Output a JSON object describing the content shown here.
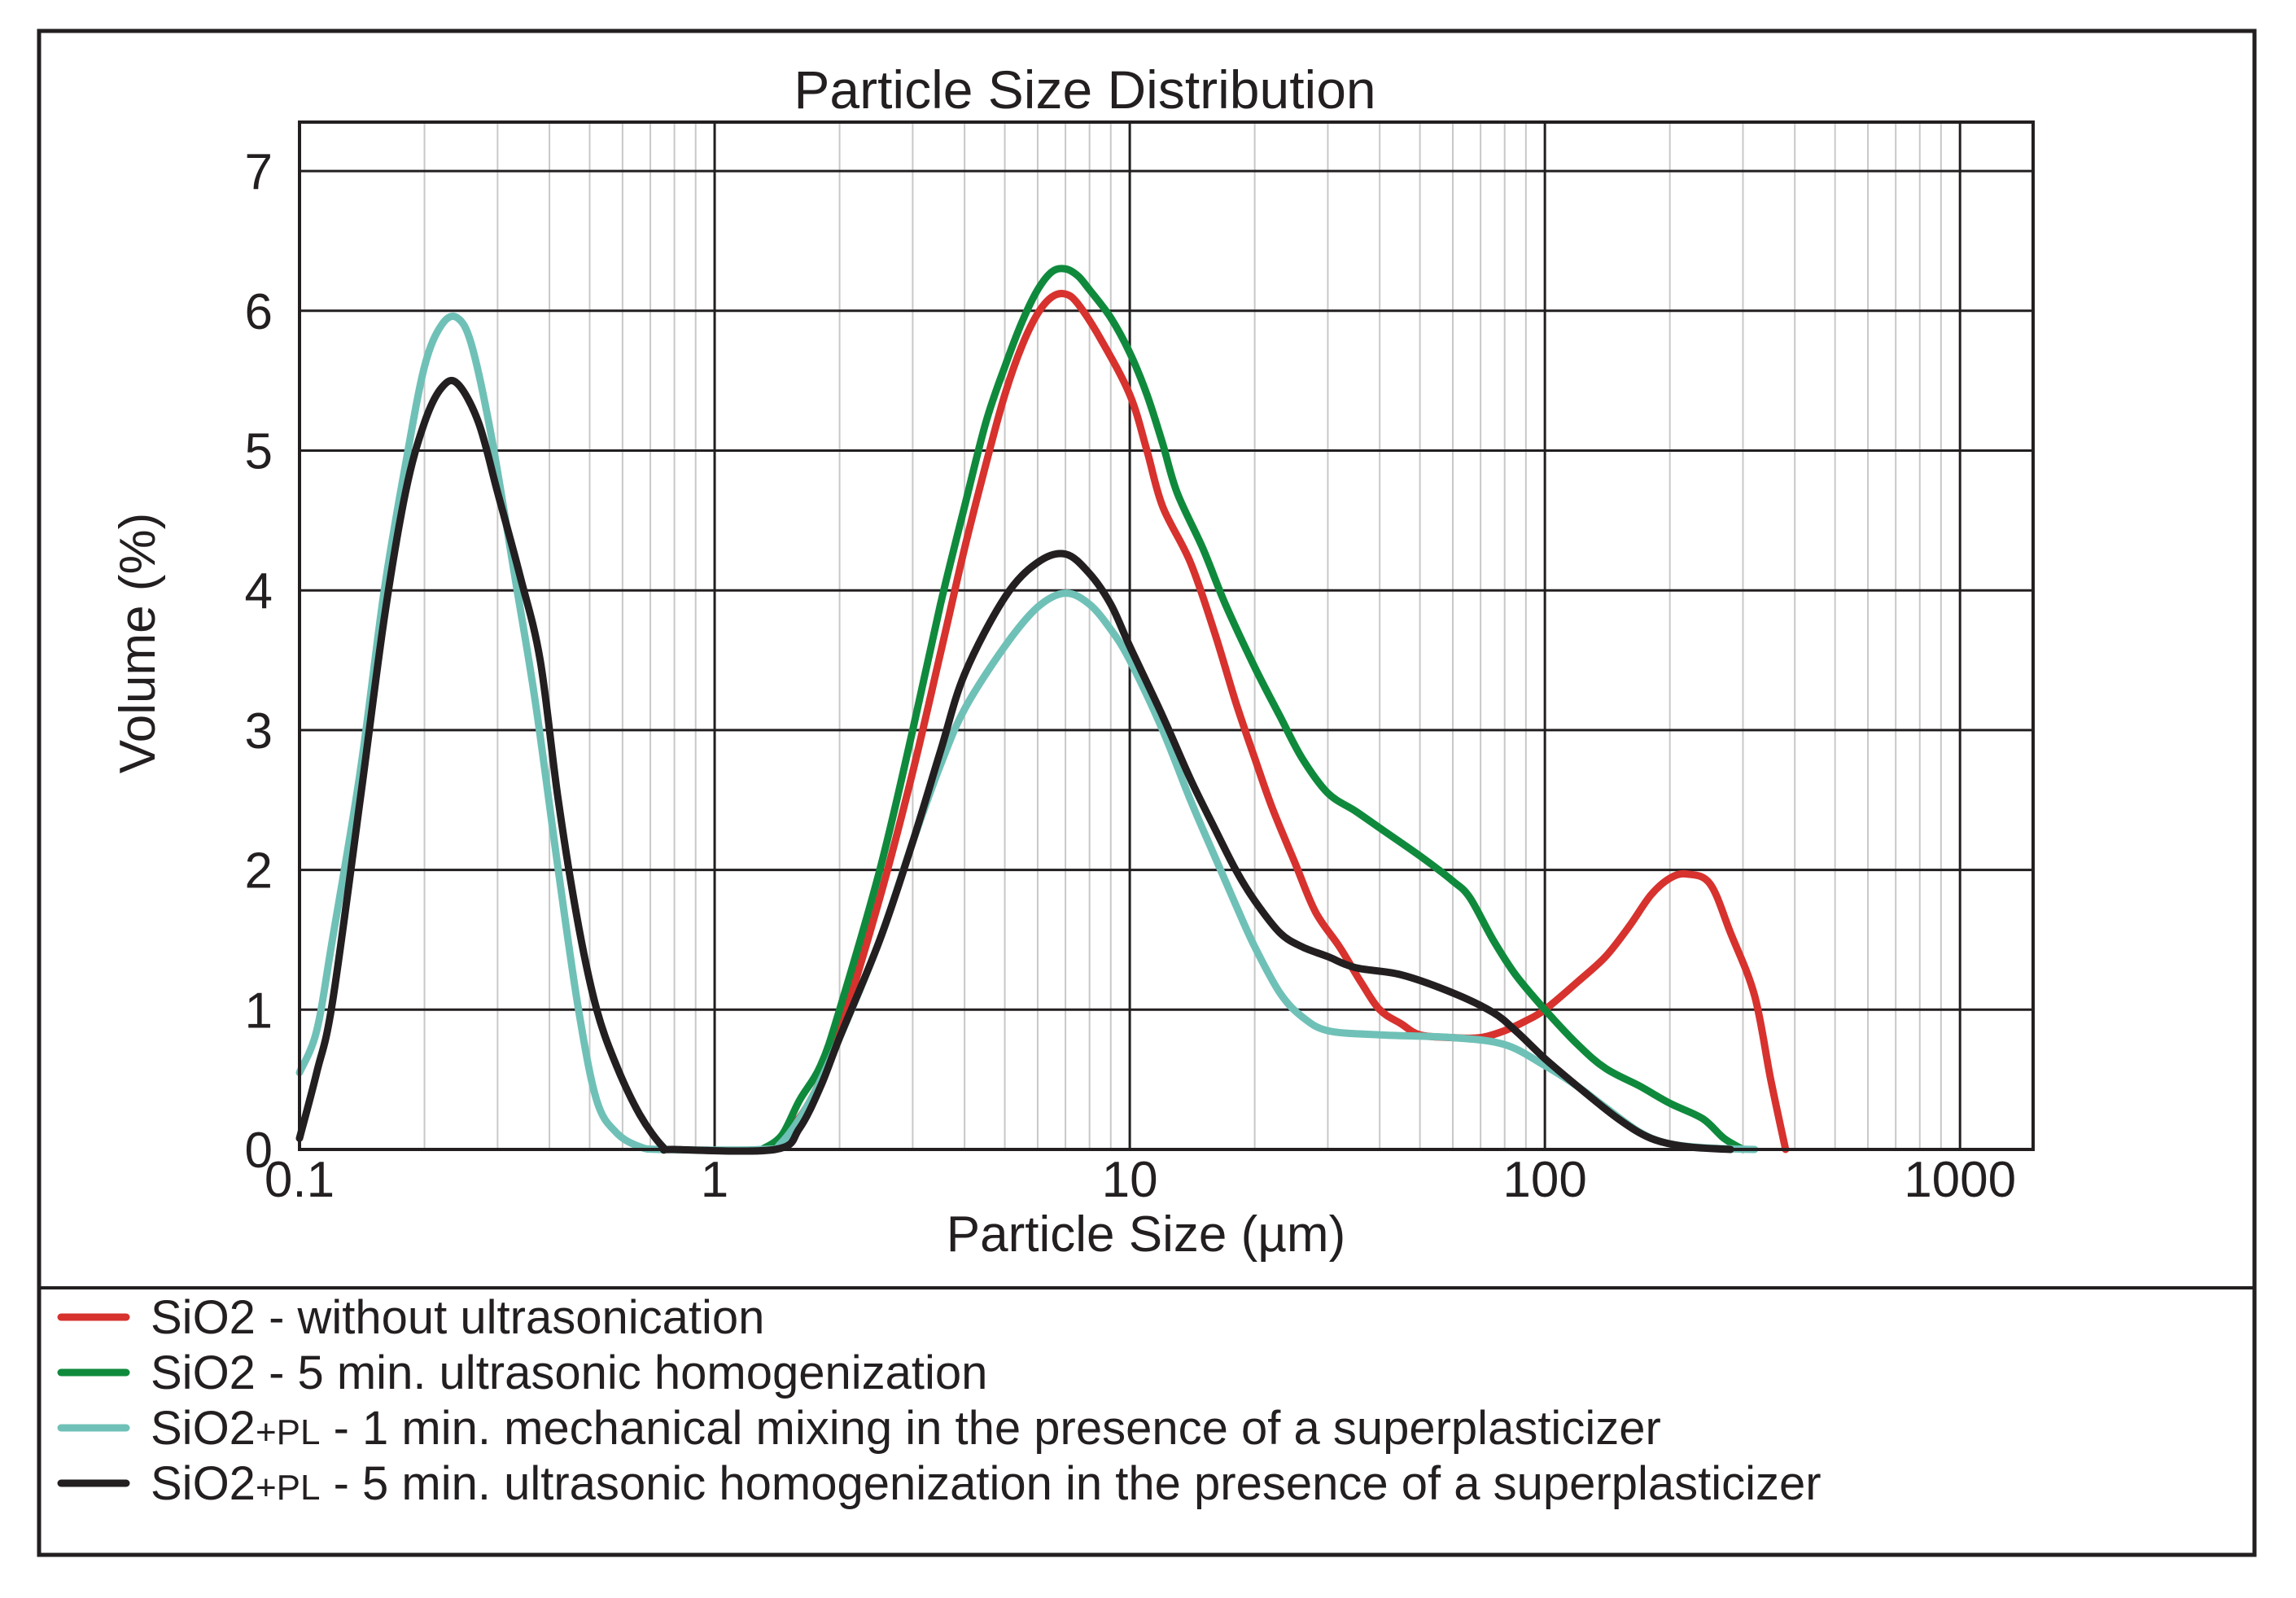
{
  "chart_data": {
    "type": "line",
    "title": "Particle Size Distribution",
    "xlabel": "Particle Size (µm)",
    "ylabel": "Volume (%)",
    "xscale": "log",
    "xlim": [
      0.1,
      1500
    ],
    "ylim": [
      0,
      7.35
    ],
    "xticks": [
      0.1,
      1,
      10,
      100,
      1000
    ],
    "xtick_labels": [
      "0.1",
      "1",
      "10",
      "100",
      "1000"
    ],
    "yticks": [
      0,
      1,
      2,
      3,
      4,
      5,
      6,
      7
    ],
    "ytick_labels": [
      "0",
      "1",
      "2",
      "3",
      "4",
      "5",
      "6",
      "7"
    ],
    "grid": true,
    "legend_position": "below",
    "series": [
      {
        "name": "SiO2 - without ultrasonication",
        "legend": {
          "base": "SiO2",
          "sub": "",
          "rest": " - without ultrasonication"
        },
        "color": "#d7322e",
        "points": [
          [
            1.3,
            0
          ],
          [
            1.45,
            0.08
          ],
          [
            1.7,
            0.35
          ],
          [
            2.0,
            0.85
          ],
          [
            2.5,
            1.8
          ],
          [
            3.0,
            2.7
          ],
          [
            3.5,
            3.55
          ],
          [
            4.0,
            4.3
          ],
          [
            4.5,
            4.9
          ],
          [
            5.0,
            5.4
          ],
          [
            5.5,
            5.75
          ],
          [
            6.0,
            5.98
          ],
          [
            6.5,
            6.1
          ],
          [
            7.0,
            6.12
          ],
          [
            7.5,
            6.05
          ],
          [
            8.5,
            5.8
          ],
          [
            10,
            5.4
          ],
          [
            11,
            5.0
          ],
          [
            12,
            4.6
          ],
          [
            14,
            4.2
          ],
          [
            16,
            3.7
          ],
          [
            18,
            3.2
          ],
          [
            20,
            2.8
          ],
          [
            22,
            2.45
          ],
          [
            25,
            2.05
          ],
          [
            28,
            1.7
          ],
          [
            32,
            1.45
          ],
          [
            36,
            1.2
          ],
          [
            40,
            1.0
          ],
          [
            45,
            0.9
          ],
          [
            50,
            0.82
          ],
          [
            60,
            0.8
          ],
          [
            70,
            0.8
          ],
          [
            80,
            0.85
          ],
          [
            90,
            0.92
          ],
          [
            100,
            1.0
          ],
          [
            120,
            1.2
          ],
          [
            140,
            1.38
          ],
          [
            160,
            1.6
          ],
          [
            180,
            1.82
          ],
          [
            200,
            1.94
          ],
          [
            220,
            1.97
          ],
          [
            250,
            1.9
          ],
          [
            280,
            1.55
          ],
          [
            320,
            1.1
          ],
          [
            350,
            0.5
          ],
          [
            380,
            0
          ]
        ]
      },
      {
        "name": "SiO2 - 5 min. ultrasonic homogenization",
        "legend": {
          "base": "SiO2",
          "sub": "",
          "rest": " - 5 min. ultrasonic homogenization"
        },
        "color": "#0f8a3c",
        "points": [
          [
            1.3,
            0
          ],
          [
            1.45,
            0.1
          ],
          [
            1.6,
            0.35
          ],
          [
            1.8,
            0.6
          ],
          [
            2.0,
            1.0
          ],
          [
            2.5,
            2.0
          ],
          [
            3.0,
            3.0
          ],
          [
            3.5,
            3.9
          ],
          [
            4.0,
            4.6
          ],
          [
            4.5,
            5.2
          ],
          [
            5.0,
            5.6
          ],
          [
            5.5,
            5.92
          ],
          [
            6.0,
            6.15
          ],
          [
            6.5,
            6.28
          ],
          [
            7.0,
            6.3
          ],
          [
            7.5,
            6.25
          ],
          [
            8.0,
            6.15
          ],
          [
            9.0,
            5.95
          ],
          [
            10,
            5.7
          ],
          [
            11,
            5.4
          ],
          [
            12,
            5.05
          ],
          [
            13,
            4.7
          ],
          [
            15,
            4.3
          ],
          [
            17,
            3.9
          ],
          [
            20,
            3.45
          ],
          [
            23,
            3.1
          ],
          [
            26,
            2.8
          ],
          [
            30,
            2.55
          ],
          [
            35,
            2.42
          ],
          [
            40,
            2.3
          ],
          [
            50,
            2.1
          ],
          [
            60,
            1.92
          ],
          [
            66,
            1.8
          ],
          [
            75,
            1.5
          ],
          [
            85,
            1.25
          ],
          [
            100,
            1.0
          ],
          [
            120,
            0.75
          ],
          [
            140,
            0.58
          ],
          [
            170,
            0.45
          ],
          [
            200,
            0.33
          ],
          [
            240,
            0.22
          ],
          [
            270,
            0.08
          ],
          [
            300,
            0
          ]
        ]
      },
      {
        "name": "SiO2+PL - 1 min. mechanical mixing in the  presence  of a superplasticizer",
        "legend": {
          "base": "SiO2",
          "sub": "+PL",
          "rest": " - 1 min. mechanical mixing in the  presence  of a superplasticizer"
        },
        "color": "#6fc1b7",
        "points": [
          [
            0.1,
            0.55
          ],
          [
            0.11,
            0.85
          ],
          [
            0.12,
            1.5
          ],
          [
            0.14,
            2.7
          ],
          [
            0.16,
            4.0
          ],
          [
            0.18,
            4.9
          ],
          [
            0.2,
            5.6
          ],
          [
            0.22,
            5.9
          ],
          [
            0.24,
            5.95
          ],
          [
            0.26,
            5.75
          ],
          [
            0.29,
            5.1
          ],
          [
            0.33,
            4.1
          ],
          [
            0.37,
            3.2
          ],
          [
            0.42,
            2.0
          ],
          [
            0.47,
            1.0
          ],
          [
            0.52,
            0.35
          ],
          [
            0.58,
            0.12
          ],
          [
            0.66,
            0.02
          ],
          [
            0.75,
            0
          ],
          [
            1.3,
            0
          ],
          [
            1.45,
            0.05
          ],
          [
            1.7,
            0.35
          ],
          [
            2.0,
            0.8
          ],
          [
            2.5,
            1.5
          ],
          [
            3.0,
            2.2
          ],
          [
            3.5,
            2.75
          ],
          [
            4.0,
            3.15
          ],
          [
            5.0,
            3.6
          ],
          [
            6.0,
            3.88
          ],
          [
            7.0,
            3.98
          ],
          [
            8.0,
            3.9
          ],
          [
            9.0,
            3.72
          ],
          [
            10,
            3.5
          ],
          [
            12,
            3.0
          ],
          [
            14,
            2.5
          ],
          [
            16,
            2.1
          ],
          [
            18,
            1.75
          ],
          [
            20,
            1.45
          ],
          [
            23,
            1.12
          ],
          [
            26,
            0.95
          ],
          [
            30,
            0.85
          ],
          [
            40,
            0.82
          ],
          [
            60,
            0.8
          ],
          [
            80,
            0.75
          ],
          [
            100,
            0.6
          ],
          [
            120,
            0.45
          ],
          [
            140,
            0.3
          ],
          [
            170,
            0.12
          ],
          [
            200,
            0.04
          ],
          [
            250,
            0.01
          ],
          [
            320,
            0
          ]
        ]
      },
      {
        "name": "SiO2+PL - 5 min. ultrasonic homogenization in the presence of a superplasticizer",
        "legend": {
          "base": "SiO2",
          "sub": "+PL",
          "rest": " - 5 min. ultrasonic homogenization in the presence of a superplasticizer"
        },
        "color": "#231f20",
        "points": [
          [
            0.1,
            0.08
          ],
          [
            0.11,
            0.55
          ],
          [
            0.12,
            1.05
          ],
          [
            0.14,
            2.5
          ],
          [
            0.16,
            3.8
          ],
          [
            0.18,
            4.7
          ],
          [
            0.2,
            5.2
          ],
          [
            0.22,
            5.45
          ],
          [
            0.24,
            5.48
          ],
          [
            0.27,
            5.2
          ],
          [
            0.3,
            4.7
          ],
          [
            0.34,
            4.1
          ],
          [
            0.38,
            3.5
          ],
          [
            0.42,
            2.5
          ],
          [
            0.47,
            1.6
          ],
          [
            0.52,
            1.0
          ],
          [
            0.58,
            0.6
          ],
          [
            0.66,
            0.25
          ],
          [
            0.75,
            0.02
          ],
          [
            0.8,
            0
          ],
          [
            1.4,
            0
          ],
          [
            1.6,
            0.15
          ],
          [
            1.8,
            0.45
          ],
          [
            2.0,
            0.8
          ],
          [
            2.5,
            1.5
          ],
          [
            3.0,
            2.2
          ],
          [
            3.5,
            2.85
          ],
          [
            4.0,
            3.4
          ],
          [
            5.0,
            3.95
          ],
          [
            6.0,
            4.2
          ],
          [
            7.0,
            4.26
          ],
          [
            8.0,
            4.12
          ],
          [
            9.0,
            3.9
          ],
          [
            10,
            3.6
          ],
          [
            12,
            3.1
          ],
          [
            14,
            2.65
          ],
          [
            16,
            2.3
          ],
          [
            18,
            2.0
          ],
          [
            20,
            1.78
          ],
          [
            23,
            1.55
          ],
          [
            26,
            1.45
          ],
          [
            30,
            1.38
          ],
          [
            35,
            1.3
          ],
          [
            45,
            1.25
          ],
          [
            60,
            1.12
          ],
          [
            75,
            0.98
          ],
          [
            85,
            0.85
          ],
          [
            100,
            0.65
          ],
          [
            120,
            0.45
          ],
          [
            150,
            0.22
          ],
          [
            180,
            0.08
          ],
          [
            220,
            0.02
          ],
          [
            280,
            0
          ]
        ]
      }
    ]
  }
}
